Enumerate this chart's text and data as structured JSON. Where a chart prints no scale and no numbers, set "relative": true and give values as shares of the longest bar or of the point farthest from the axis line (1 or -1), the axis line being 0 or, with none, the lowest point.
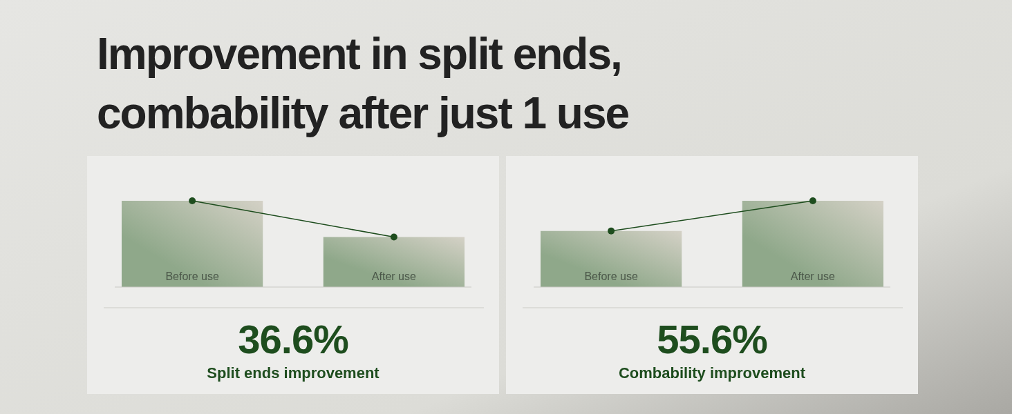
{
  "chart_data": [
    {
      "type": "bar",
      "title": "Improvement in split ends,\ncombability after just 1 use",
      "relative": true,
      "marker": "circle",
      "categories": [
        "Before use",
        "After use"
      ],
      "series": [
        {
          "color": "#8fa88a",
          "values": [
            1,
            0.58
          ]
        },
        {
          "type": "line",
          "color": "#1e4d1e",
          "values": [
            1,
            0.58
          ]
        }
      ],
      "annotations": [
        "36.6%",
        "Split ends improvement"
      ]
    },
    {
      "type": "bar",
      "relative": true,
      "marker": "circle",
      "categories": [
        "Before use",
        "After use"
      ],
      "series": [
        {
          "color": "#8fa88a",
          "values": [
            0.65,
            1
          ]
        },
        {
          "type": "line",
          "color": "#1e4d1e",
          "values": [
            0.65,
            1
          ]
        }
      ],
      "annotations": [
        "55.6%",
        "Combability improvement"
      ]
    }
  ]
}
